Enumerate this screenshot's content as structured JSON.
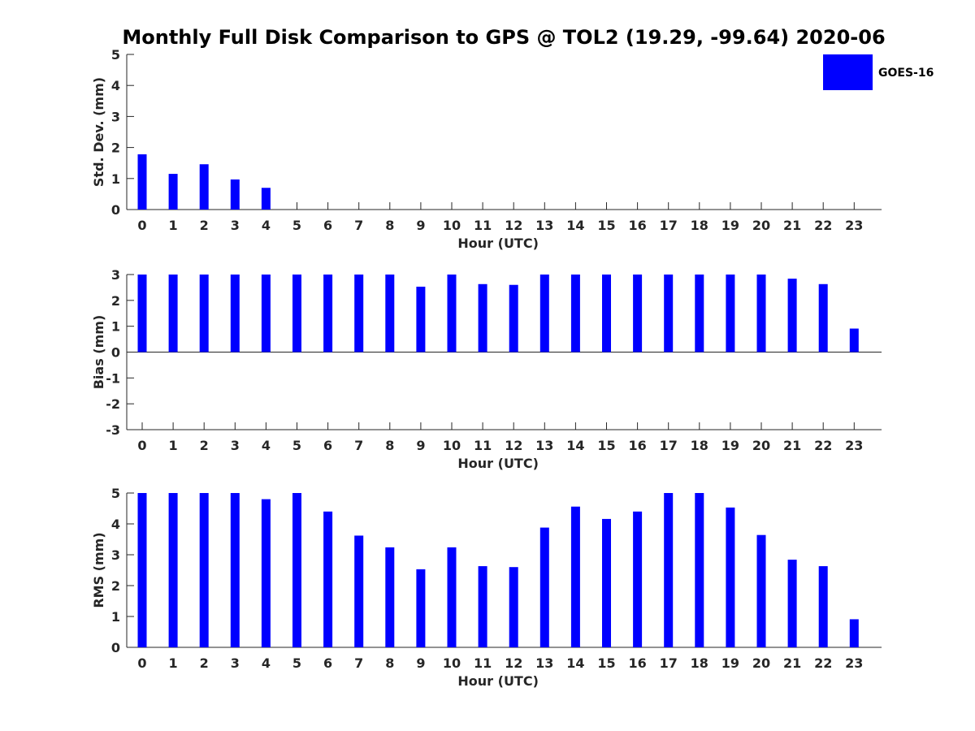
{
  "title": "Monthly Full Disk Comparison to GPS @ TOL2 (19.29, -99.64) 2020-06",
  "legend": {
    "label": "GOES-16",
    "color": "#0000ff",
    "placement": "top-right"
  },
  "chart_data": [
    {
      "type": "bar",
      "categories": [
        "0",
        "1",
        "2",
        "3",
        "4",
        "5",
        "6",
        "7",
        "8",
        "9",
        "10",
        "11",
        "12",
        "13",
        "14",
        "15",
        "16",
        "17",
        "18",
        "19",
        "20",
        "21",
        "22",
        "23"
      ],
      "values": [
        1.78,
        1.15,
        1.46,
        0.97,
        0.7,
        null,
        null,
        null,
        null,
        null,
        null,
        null,
        null,
        null,
        null,
        null,
        null,
        null,
        null,
        null,
        null,
        null,
        null,
        null
      ],
      "xlabel": "Hour (UTC)",
      "ylabel": "Std. Dev. (mm)",
      "ylim": [
        0,
        5
      ],
      "yticks": [
        "0",
        "1",
        "2",
        "3",
        "4",
        "5"
      ],
      "color": "#0000ff"
    },
    {
      "type": "bar",
      "categories": [
        "0",
        "1",
        "2",
        "3",
        "4",
        "5",
        "6",
        "7",
        "8",
        "9",
        "10",
        "11",
        "12",
        "13",
        "14",
        "15",
        "16",
        "17",
        "18",
        "19",
        "20",
        "21",
        "22",
        "23"
      ],
      "values": [
        3.0,
        3.0,
        3.0,
        3.0,
        3.0,
        3.0,
        3.0,
        3.0,
        3.0,
        2.53,
        3.0,
        2.63,
        2.6,
        3.0,
        3.0,
        3.0,
        3.0,
        3.0,
        3.0,
        3.0,
        3.0,
        2.84,
        2.63,
        0.91
      ],
      "xlabel": "Hour (UTC)",
      "ylabel": "Bias (mm)",
      "ylim": [
        -3,
        3
      ],
      "yticks": [
        "-3",
        "-2",
        "-1",
        "0",
        "1",
        "2",
        "3"
      ],
      "color": "#0000ff"
    },
    {
      "type": "bar",
      "categories": [
        "0",
        "1",
        "2",
        "3",
        "4",
        "5",
        "6",
        "7",
        "8",
        "9",
        "10",
        "11",
        "12",
        "13",
        "14",
        "15",
        "16",
        "17",
        "18",
        "19",
        "20",
        "21",
        "22",
        "23"
      ],
      "values": [
        5.0,
        5.0,
        5.0,
        5.0,
        4.8,
        5.0,
        4.4,
        3.62,
        3.24,
        2.53,
        3.24,
        2.63,
        2.6,
        3.88,
        4.56,
        4.16,
        4.4,
        5.0,
        5.0,
        4.53,
        3.64,
        2.84,
        2.63,
        0.91
      ],
      "xlabel": "Hour (UTC)",
      "ylabel": "RMS (mm)",
      "ylim": [
        0,
        5
      ],
      "yticks": [
        "0",
        "1",
        "2",
        "3",
        "4",
        "5"
      ],
      "color": "#0000ff"
    }
  ]
}
